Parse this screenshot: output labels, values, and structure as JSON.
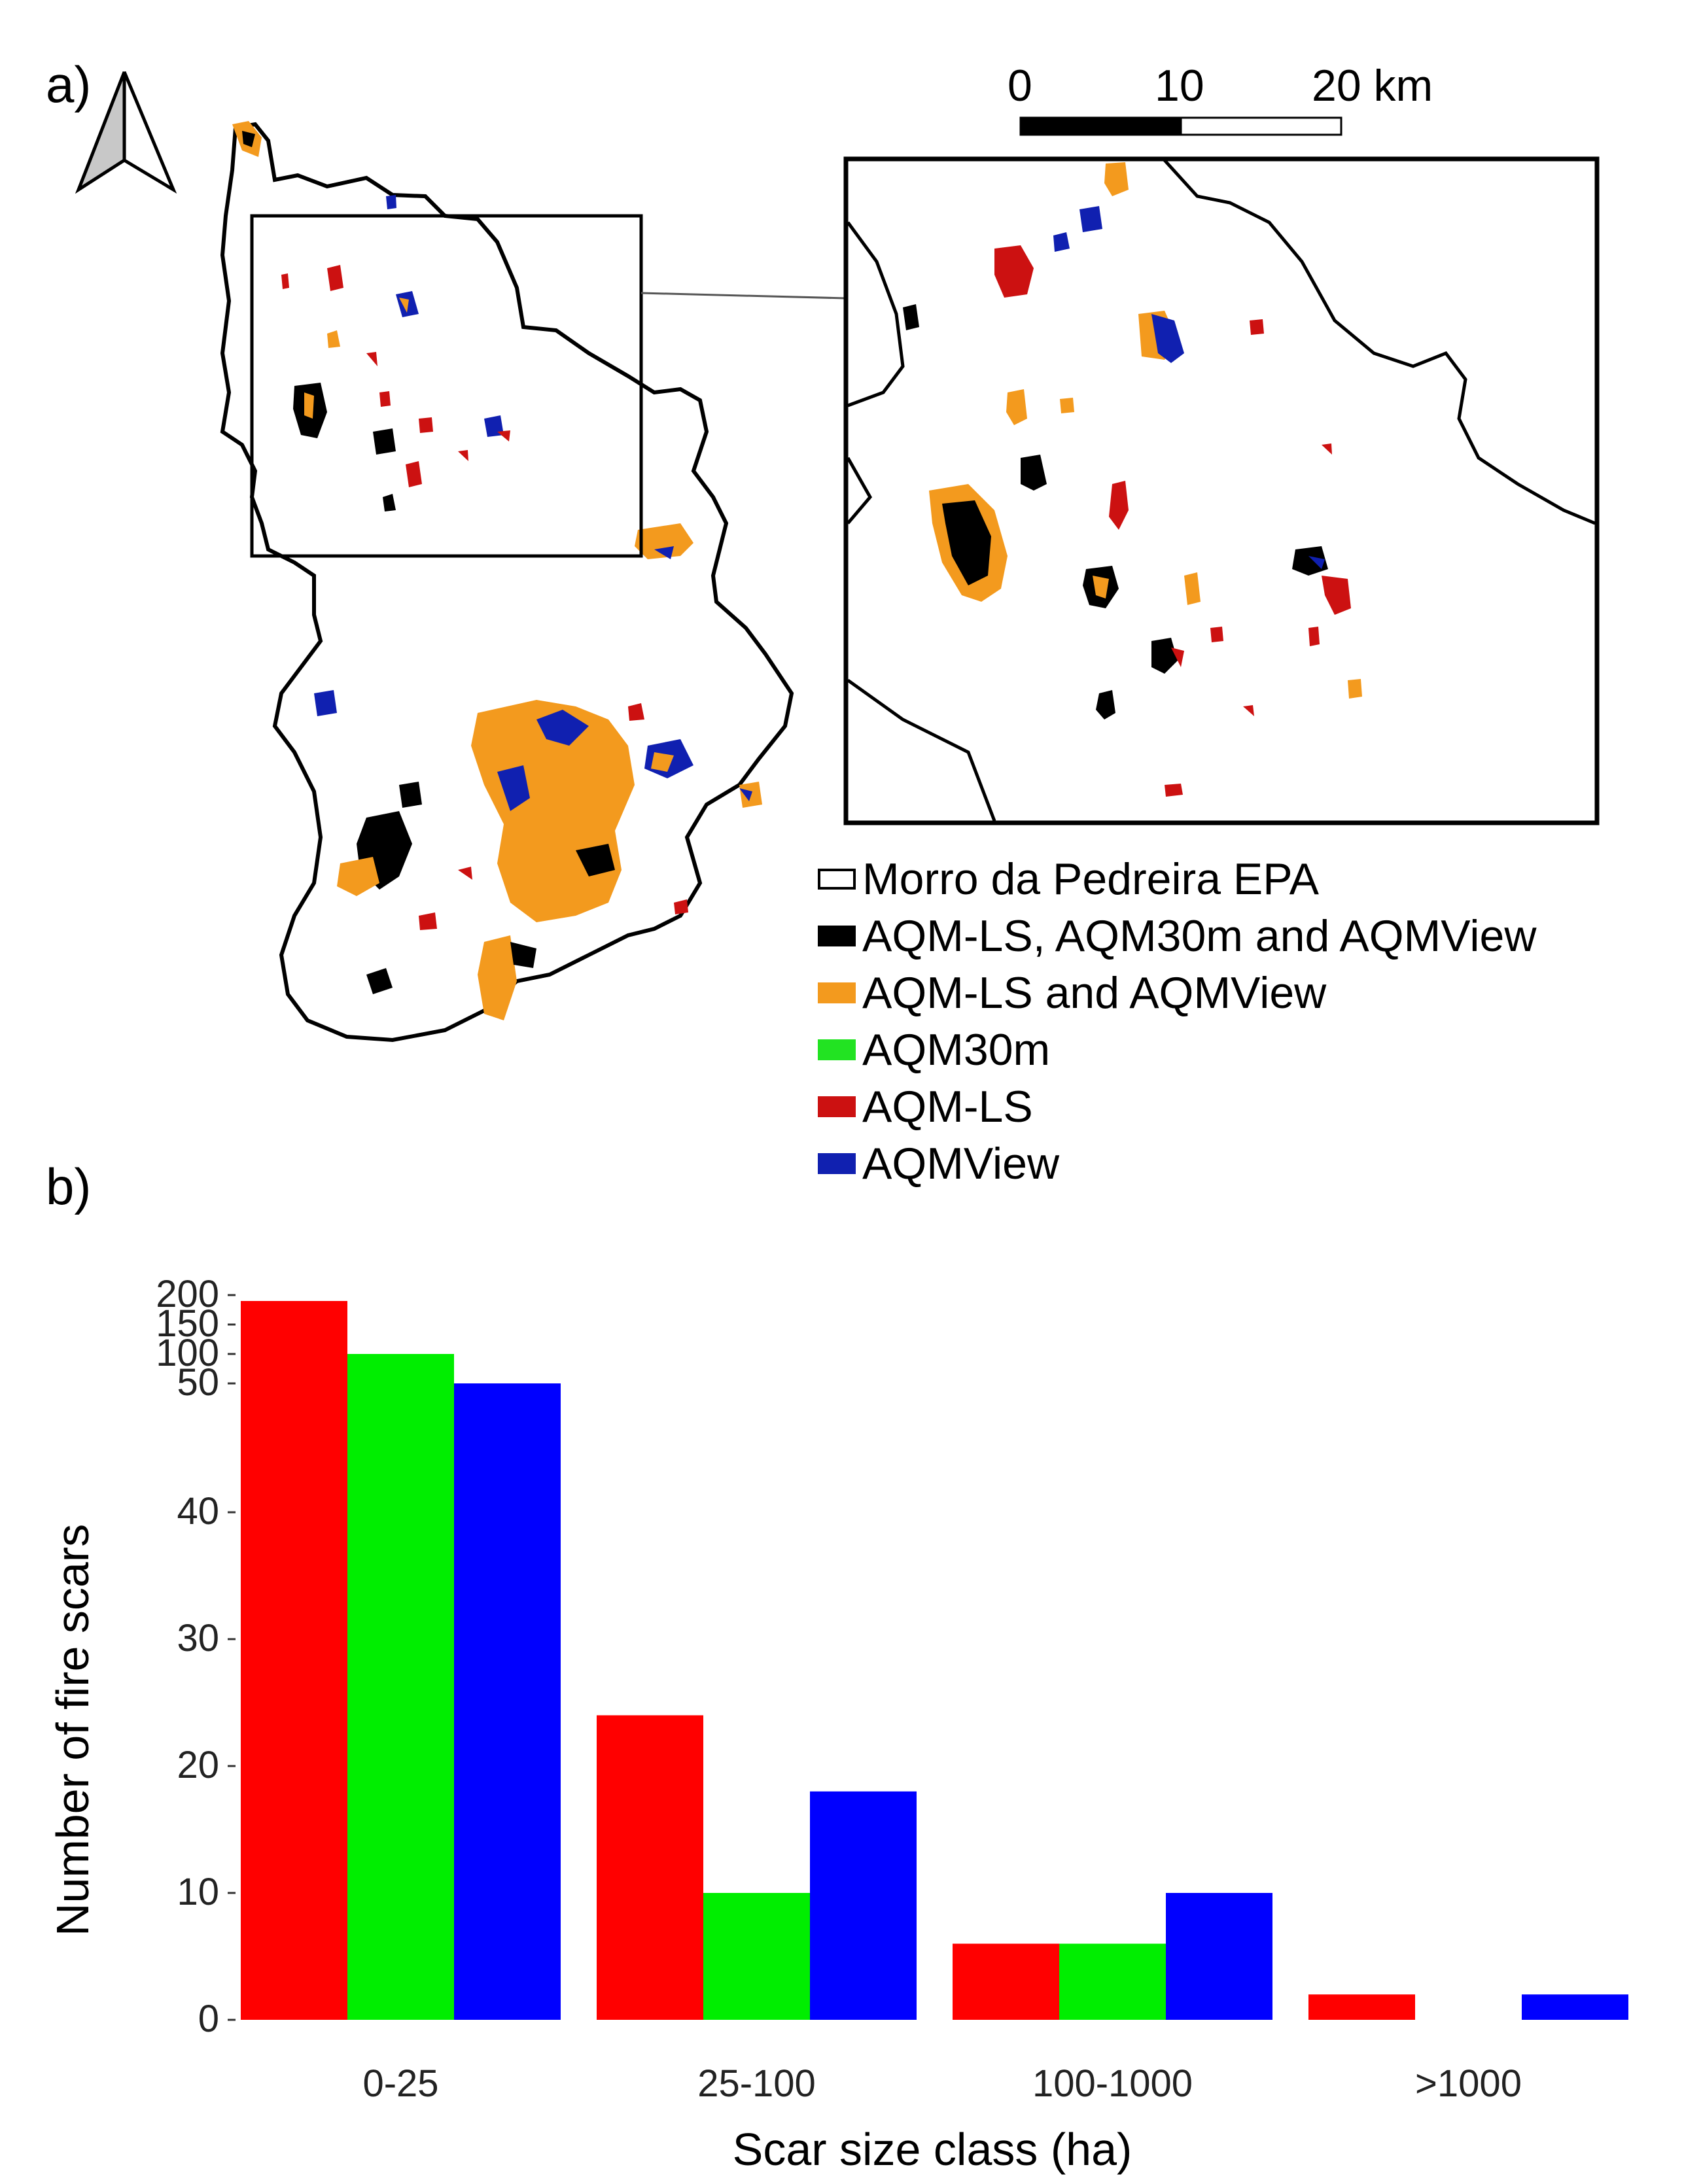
{
  "panel_a_label": "a)",
  "panel_b_label": "b)",
  "scale_bar": {
    "labels": [
      "0",
      "10",
      "20 km"
    ]
  },
  "legend": [
    {
      "label": "Morro da Pedreira EPA",
      "color": "#ffffff"
    },
    {
      "label": "AQM-LS, AQM30m and AQMView",
      "color": "#000000"
    },
    {
      "label": "AQM-LS and AQMView",
      "color": "#f39a1e"
    },
    {
      "label": "AQM30m",
      "color": "#22e322"
    },
    {
      "label": "AQM-LS",
      "color": "#cc1111"
    },
    {
      "label": "AQMView",
      "color": "#1020b0"
    }
  ],
  "colors": {
    "burn_orange": "#f39a1e",
    "burn_black": "#000000",
    "burn_red": "#cc1111",
    "burn_blue": "#1020b0"
  },
  "chart_data": {
    "type": "bar",
    "xlabel": "Scar size class (ha)",
    "ylabel": "Number of fire scars",
    "categories": [
      "0-25",
      "25-100",
      "100-1000",
      ">1000"
    ],
    "series": [
      {
        "color": "#ff0000",
        "values": [
          190,
          24,
          6,
          2
        ]
      },
      {
        "color": "#00ee00",
        "values": [
          100,
          10,
          6,
          0
        ]
      },
      {
        "color": "#0000ff",
        "values": [
          50,
          18,
          10,
          2
        ]
      }
    ],
    "y_axis_break": "scale changes above 50",
    "y_ticks_lower": [
      0,
      10,
      20,
      30,
      40
    ],
    "y_ticks_upper": [
      50,
      100,
      150,
      200
    ],
    "grid": false,
    "legend": "none"
  }
}
